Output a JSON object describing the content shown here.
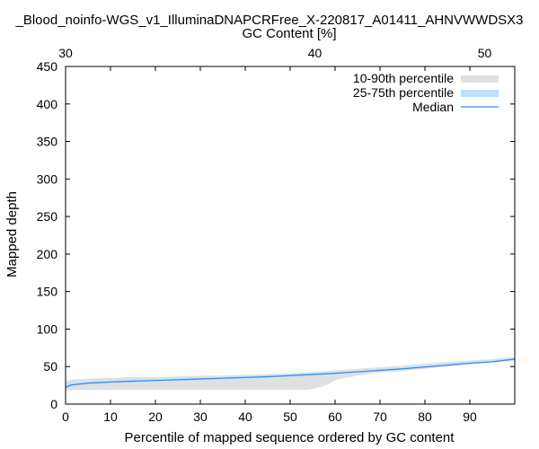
{
  "chart_data": {
    "type": "area",
    "title": "_Blood_noinfo-WGS_v1_IlluminaDNAPCRFree_X-220817_A01411_AHNVWWDSX3",
    "top_xlabel": "GC Content [%]",
    "xlabel": "Percentile of mapped sequence ordered by GC content",
    "ylabel": "Mapped depth",
    "xlim": [
      0,
      100
    ],
    "ylim": [
      0,
      450
    ],
    "x_ticks": [
      "0",
      "10",
      "20",
      "30",
      "40",
      "50",
      "60",
      "70",
      "80",
      "90"
    ],
    "y_ticks": [
      "0",
      "50",
      "100",
      "150",
      "200",
      "250",
      "300",
      "350",
      "400",
      "450"
    ],
    "top_ticks": [
      {
        "pos": 0,
        "label": "30"
      },
      {
        "pos": 55.5,
        "label": "40"
      },
      {
        "pos": 93.3,
        "label": "50"
      }
    ],
    "grid": false,
    "legend_position": "top-right",
    "colors": {
      "p10_90": "#e0e0e0",
      "p25_75": "#bfdffb",
      "median": "#1e90ff"
    },
    "series": [
      {
        "name": "10-90th percentile",
        "x": [
          0,
          2,
          5,
          10,
          15,
          20,
          25,
          30,
          35,
          40,
          45,
          50,
          53,
          55,
          58,
          60,
          65,
          70,
          75,
          80,
          85,
          90,
          95,
          100
        ],
        "upper": [
          31,
          33,
          34,
          35,
          36,
          36,
          37,
          38,
          38,
          39,
          40,
          41,
          42,
          43,
          44,
          45,
          47,
          49,
          51,
          54,
          56,
          58,
          60,
          63
        ],
        "lower": [
          18,
          19,
          19,
          19,
          19,
          19,
          19,
          19,
          19,
          19,
          19,
          19,
          19,
          20,
          25,
          32,
          38,
          42,
          44,
          47,
          50,
          53,
          55,
          58
        ]
      },
      {
        "name": "25-75th percentile",
        "x": [
          0,
          2,
          5,
          10,
          15,
          20,
          25,
          30,
          35,
          40,
          45,
          50,
          55,
          60,
          65,
          70,
          75,
          80,
          85,
          90,
          95,
          100
        ],
        "upper": [
          27,
          28,
          29,
          31,
          32,
          33,
          34,
          35,
          36,
          37,
          38,
          39,
          41,
          42,
          44,
          46,
          48,
          50,
          53,
          55,
          57,
          61
        ],
        "lower": [
          22,
          25,
          26,
          28,
          29,
          30,
          31,
          32,
          33,
          34,
          35,
          37,
          38,
          40,
          42,
          44,
          46,
          48,
          51,
          53,
          55,
          58
        ]
      },
      {
        "name": "Median",
        "x": [
          0,
          1,
          2,
          5,
          10,
          15,
          20,
          25,
          30,
          35,
          40,
          45,
          50,
          55,
          60,
          65,
          70,
          75,
          80,
          85,
          90,
          95,
          100
        ],
        "y": [
          22,
          25,
          26,
          28,
          29.5,
          30.5,
          31.5,
          32.5,
          33.5,
          34.5,
          35.5,
          36.5,
          38,
          39.5,
          41,
          43,
          45,
          47,
          49.5,
          52,
          54.5,
          56.5,
          60
        ]
      }
    ]
  }
}
